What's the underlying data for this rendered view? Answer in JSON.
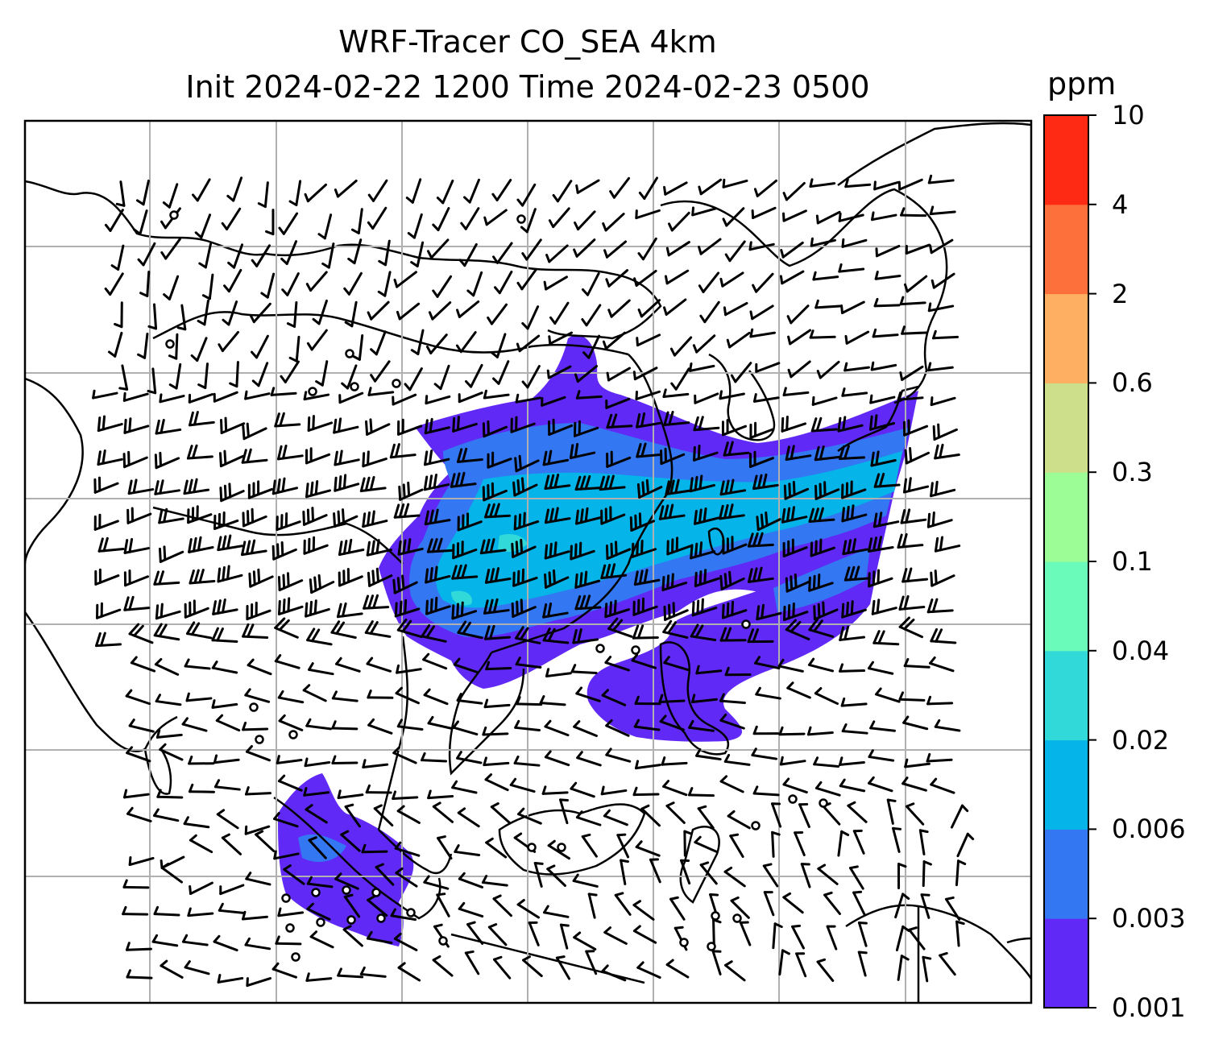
{
  "title": {
    "line1": "WRF-Tracer CO_SEA 4km",
    "line2": "Init 2024-02-22 1200 Time 2024-02-23 0500"
  },
  "colorbar": {
    "unit": "ppm",
    "levels": [
      "0.001",
      "0.003",
      "0.006",
      "0.02",
      "0.04",
      "0.1",
      "0.3",
      "0.6",
      "2",
      "4",
      "10"
    ],
    "colors": [
      "#6129f5",
      "#3377f3",
      "#05b4e8",
      "#31dad9",
      "#6afbbb",
      "#9cfc96",
      "#cddf8a",
      "#feaf61",
      "#fd6f3b",
      "#fe2a14"
    ]
  },
  "map": {
    "background": "#ffffff",
    "coastline_color": "#000000",
    "gridline_color": "#b0b0b0",
    "wind_barb_color": "#000000"
  }
}
